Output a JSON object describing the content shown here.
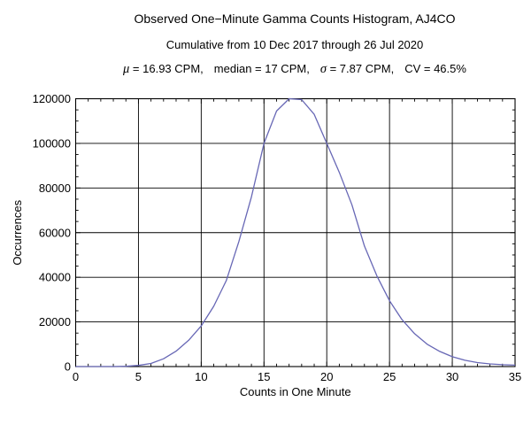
{
  "header": {
    "title": "Observed One−Minute Gamma Counts Histogram, AJ4CO",
    "subtitle": "Cumulative from 10 Dec 2017 through 26 Jul 2020",
    "stats": {
      "mu_symbol": "μ",
      "mu_rest": " = 16.93 CPM,",
      "median": "median = 17 CPM,",
      "sigma_symbol": "σ",
      "sigma_rest": " = 7.87 CPM,",
      "cv": "CV = 46.5%"
    }
  },
  "chart_data": {
    "type": "line",
    "title": "Observed One−Minute Gamma Counts Histogram, AJ4CO",
    "subtitle": "Cumulative from 10 Dec 2017 through 26 Jul 2020",
    "annotation": "μ = 16.93 CPM,   median = 17 CPM,   σ = 7.87 CPM,   CV = 46.5%",
    "xlabel": "Counts in One Minute",
    "ylabel": "Occurrences",
    "xlim": [
      0,
      35
    ],
    "ylim": [
      0,
      120000
    ],
    "xticks_major": [
      0,
      5,
      10,
      15,
      20,
      25,
      30,
      35
    ],
    "yticks_major": [
      0,
      20000,
      40000,
      60000,
      80000,
      100000,
      120000
    ],
    "x_minor_step": 1,
    "y_minor_step": 5000,
    "grid": true,
    "legend": "none",
    "line_color": "#6767b5",
    "frame_color": "#000000",
    "x": [
      0,
      1,
      2,
      3,
      4,
      5,
      6,
      7,
      8,
      9,
      10,
      11,
      12,
      13,
      14,
      15,
      16,
      17,
      18,
      19,
      20,
      21,
      22,
      23,
      24,
      25,
      26,
      27,
      28,
      29,
      30,
      31,
      32,
      33,
      34,
      35
    ],
    "y": [
      0,
      0,
      0,
      0,
      100,
      500,
      1400,
      3500,
      6900,
      11800,
      18200,
      27000,
      38500,
      56000,
      76000,
      100000,
      114500,
      120000,
      119600,
      113000,
      100000,
      87000,
      72500,
      54000,
      40500,
      29500,
      21000,
      14700,
      10000,
      6800,
      4400,
      2800,
      1800,
      1200,
      850,
      650
    ]
  }
}
